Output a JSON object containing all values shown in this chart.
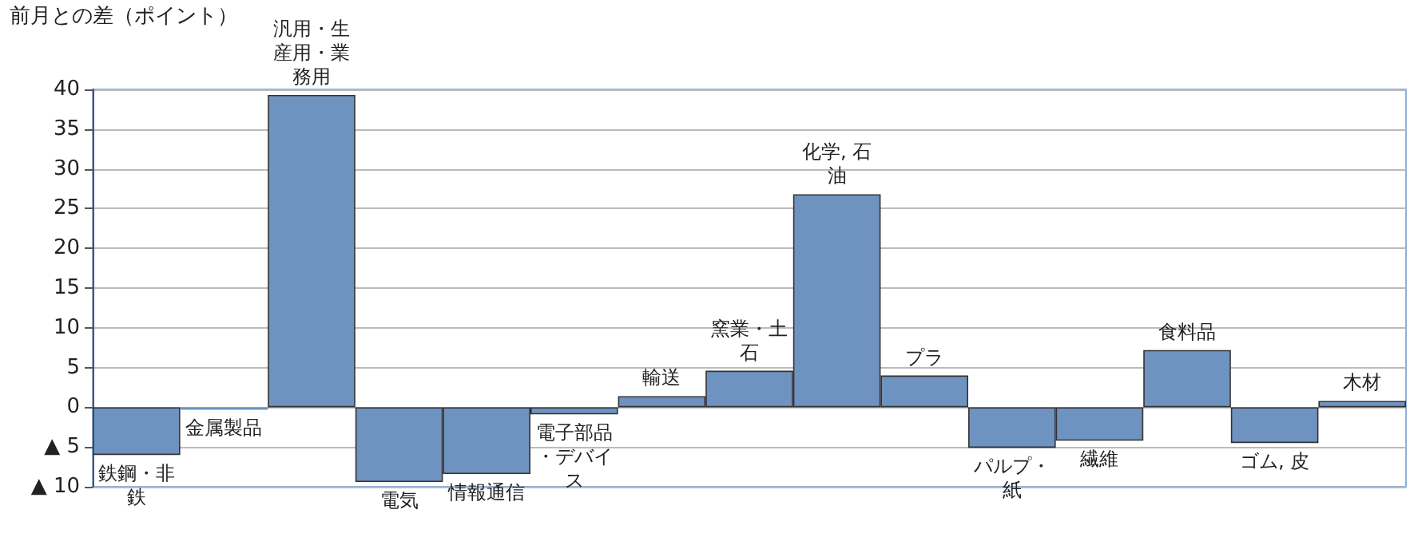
{
  "chart_data": {
    "type": "bar",
    "ylabel": "前月との差（ポイント）",
    "categories": [
      "鉄鋼・非鉄",
      "金属製品",
      "汎用・生産用・業務用",
      "電気",
      "情報通信",
      "電子部品・デバイス",
      "輸送",
      "窯業・土石",
      "化学, 石油",
      "プラ",
      "パルプ・紙",
      "繊維",
      "食料品",
      "ゴム, 皮",
      "木材"
    ],
    "values": [
      -6.0,
      -0.3,
      39.3,
      -9.4,
      -8.4,
      -0.9,
      1.4,
      4.6,
      26.8,
      4.0,
      -5.1,
      -4.2,
      7.2,
      -4.5,
      0.8
    ],
    "color": "#6f93c0",
    "ylim": [
      -10,
      40
    ],
    "yticks": [
      {
        "value": -10,
        "label": "▲ 10"
      },
      {
        "value": -5,
        "label": "▲ 5"
      },
      0,
      5,
      10,
      15,
      20,
      25,
      30,
      35,
      40
    ],
    "grid": "y"
  }
}
